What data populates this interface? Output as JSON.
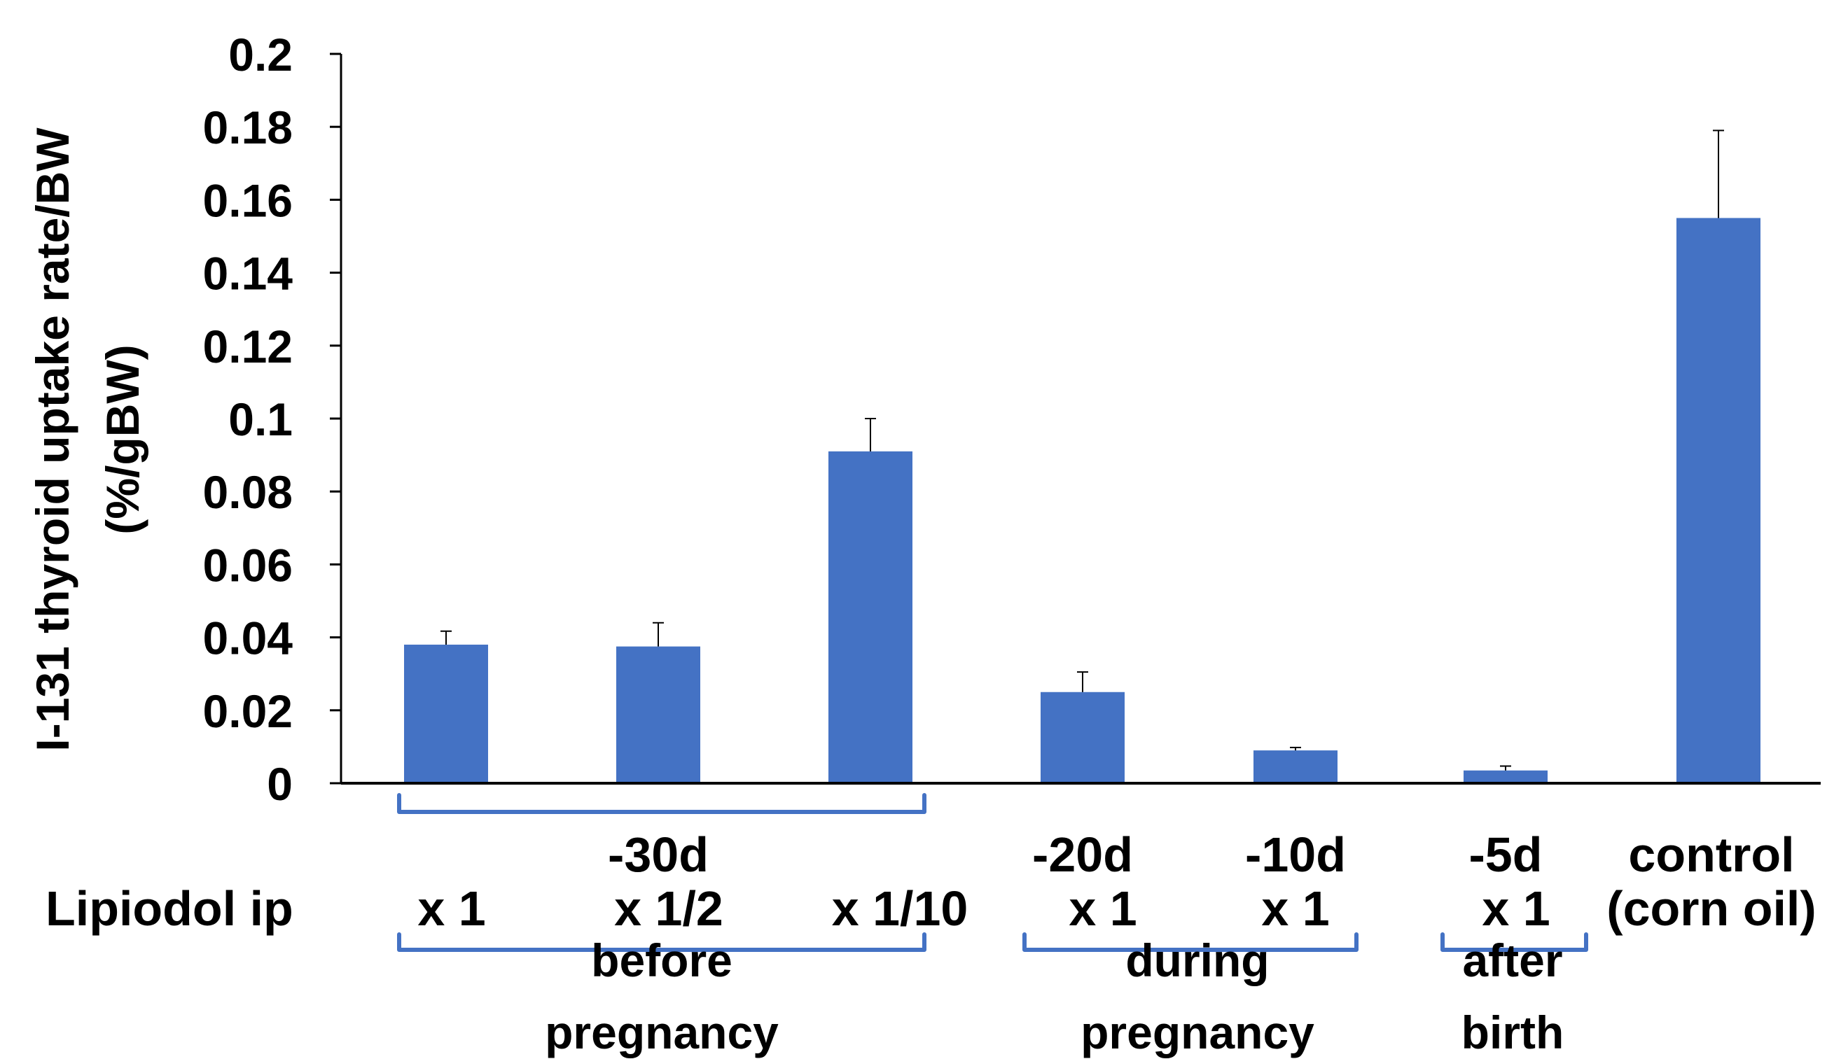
{
  "chart_data": {
    "type": "bar",
    "ylabel_line1": "I-131 thyroid uptake rate/BW",
    "ylabel_line2": "(%/gBW)",
    "ylim": [
      0,
      0.2
    ],
    "yticks": [
      "0",
      "0.02",
      "0.04",
      "0.06",
      "0.08",
      "0.1",
      "0.12",
      "0.14",
      "0.16",
      "0.18",
      "0.2"
    ],
    "tick_values": [
      0,
      0.02,
      0.04,
      0.06,
      0.08,
      0.1,
      0.12,
      0.14,
      0.16,
      0.18,
      0.2
    ],
    "bar_color": "#4472C4",
    "bracket_color": "#4472C4",
    "values": [
      0.038,
      0.0375,
      0.091,
      0.025,
      0.009,
      0.0035,
      0.155
    ],
    "errors": [
      0.0037,
      0.0065,
      0.009,
      0.0055,
      0.0008,
      0.0012,
      0.024
    ],
    "categories": [
      {
        "top": "",
        "dose": "x 1"
      },
      {
        "top": "-30d",
        "dose": "x 1/2"
      },
      {
        "top": "",
        "dose": "x 1/10"
      },
      {
        "top": "-20d",
        "dose": "x 1"
      },
      {
        "top": "-10d",
        "dose": "x 1"
      },
      {
        "top": "-5d",
        "dose": "x 1"
      },
      {
        "top": "control",
        "dose": "(corn oil)"
      }
    ],
    "row_label": "Lipiodol ip",
    "groups": [
      {
        "line1": "before",
        "line2": "pregnancy",
        "from": 0,
        "to": 2
      },
      {
        "line1": "during",
        "line2": "pregnancy",
        "from": 3,
        "to": 4
      },
      {
        "line1": "after",
        "line2": "birth",
        "from": 5,
        "to": 5
      }
    ]
  }
}
